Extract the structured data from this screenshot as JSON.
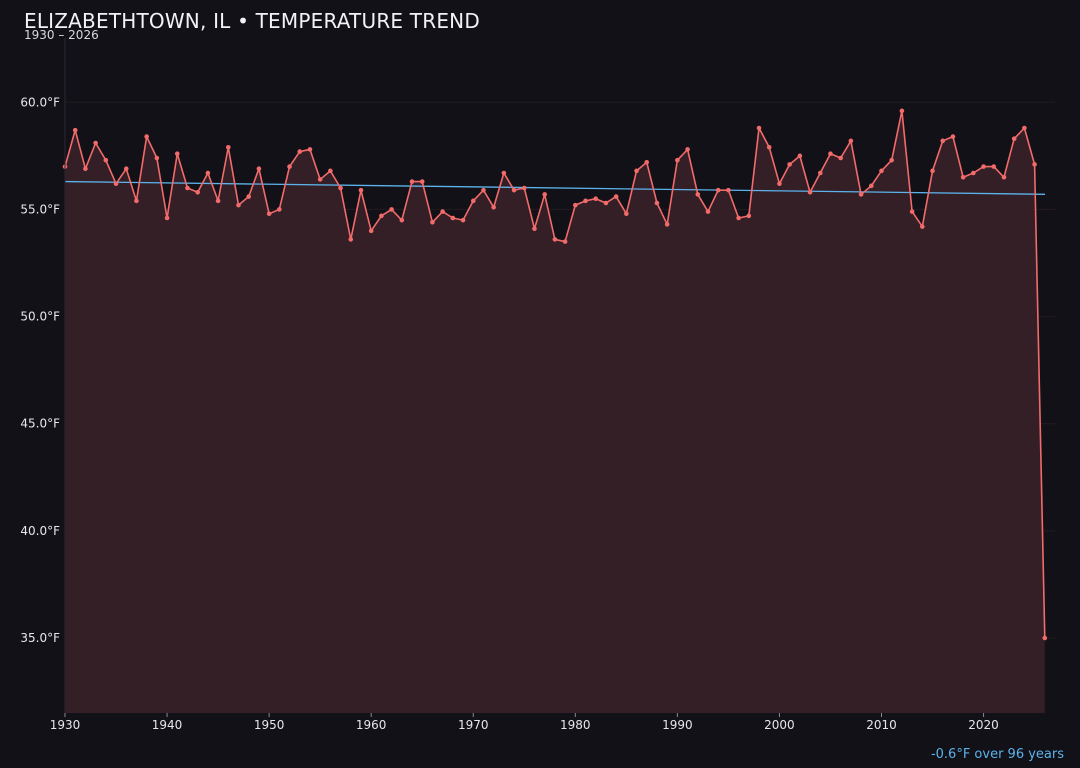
{
  "colors": {
    "background": "#121117",
    "series": "#f26b6b",
    "area_fill": "#341f26",
    "trend": "#5cb3ec",
    "grid": "#221c22"
  },
  "chart_data": {
    "type": "line",
    "title": "ELIZABETHTOWN, IL • TEMPERATURE TREND",
    "subtitle": "1930 – 2026",
    "annotation": "-0.6°F over 96 years",
    "xlim": [
      1930,
      2027
    ],
    "ylim": [
      31.5,
      63.0
    ],
    "x_ticks": [
      1930,
      1940,
      1950,
      1960,
      1970,
      1980,
      1990,
      2000,
      2010,
      2020
    ],
    "x_tick_labels": [
      "1930",
      "1940",
      "1950",
      "1960",
      "1970",
      "1980",
      "1990",
      "2000",
      "2010",
      "2020"
    ],
    "y_ticks": [
      35,
      40,
      45,
      50,
      55,
      60
    ],
    "y_tick_labels": [
      "35.0°F",
      "40.0°F",
      "45.0°F",
      "50.0°F",
      "55.0°F",
      "60.0°F"
    ],
    "grid": "horizontal",
    "series": [
      {
        "x": [
          1930,
          1931,
          1932,
          1933,
          1934,
          1935,
          1936,
          1937,
          1938,
          1939,
          1940,
          1941,
          1942,
          1943,
          1944,
          1945,
          1946,
          1947,
          1948,
          1949,
          1950,
          1951,
          1952,
          1953,
          1954,
          1955,
          1956,
          1957,
          1958,
          1959,
          1960,
          1961,
          1962,
          1963,
          1964,
          1965,
          1966,
          1967,
          1968,
          1969,
          1970,
          1971,
          1972,
          1973,
          1974,
          1975,
          1976,
          1977,
          1978,
          1979,
          1980,
          1981,
          1982,
          1983,
          1984,
          1985,
          1986,
          1987,
          1988,
          1989,
          1990,
          1991,
          1992,
          1993,
          1994,
          1995,
          1996,
          1997,
          1998,
          1999,
          2000,
          2001,
          2002,
          2003,
          2004,
          2005,
          2006,
          2007,
          2008,
          2009,
          2010,
          2011,
          2012,
          2013,
          2014,
          2015,
          2016,
          2017,
          2018,
          2019,
          2020,
          2021,
          2022,
          2023,
          2024,
          2025,
          2026
        ],
        "values": [
          57.0,
          58.7,
          56.9,
          58.1,
          57.3,
          56.2,
          56.9,
          55.4,
          58.4,
          57.4,
          54.6,
          57.6,
          56.0,
          55.8,
          56.7,
          55.4,
          57.9,
          55.2,
          55.6,
          56.9,
          54.8,
          55.0,
          57.0,
          57.7,
          57.8,
          56.4,
          56.8,
          56.0,
          53.6,
          55.9,
          54.0,
          54.7,
          55.0,
          54.5,
          56.3,
          56.3,
          54.4,
          54.9,
          54.6,
          54.5,
          55.4,
          55.9,
          55.1,
          56.7,
          55.9,
          56.0,
          54.1,
          55.7,
          53.6,
          53.5,
          55.2,
          55.4,
          55.5,
          55.3,
          55.6,
          54.8,
          56.8,
          57.2,
          55.3,
          54.3,
          57.3,
          57.8,
          55.7,
          54.9,
          55.9,
          55.9,
          54.6,
          54.7,
          58.8,
          57.9,
          56.2,
          57.1,
          57.5,
          55.8,
          56.7,
          57.6,
          57.4,
          58.2,
          55.7,
          56.1,
          56.8,
          57.3,
          59.6,
          54.9,
          54.2,
          56.8,
          58.2,
          58.4,
          56.5,
          56.7,
          57.0,
          57.0,
          56.5,
          58.3,
          58.8,
          57.1,
          35.0
        ]
      }
    ],
    "trend_line": {
      "x": [
        1930,
        2027
      ],
      "values": [
        56.3,
        55.7
      ]
    }
  }
}
